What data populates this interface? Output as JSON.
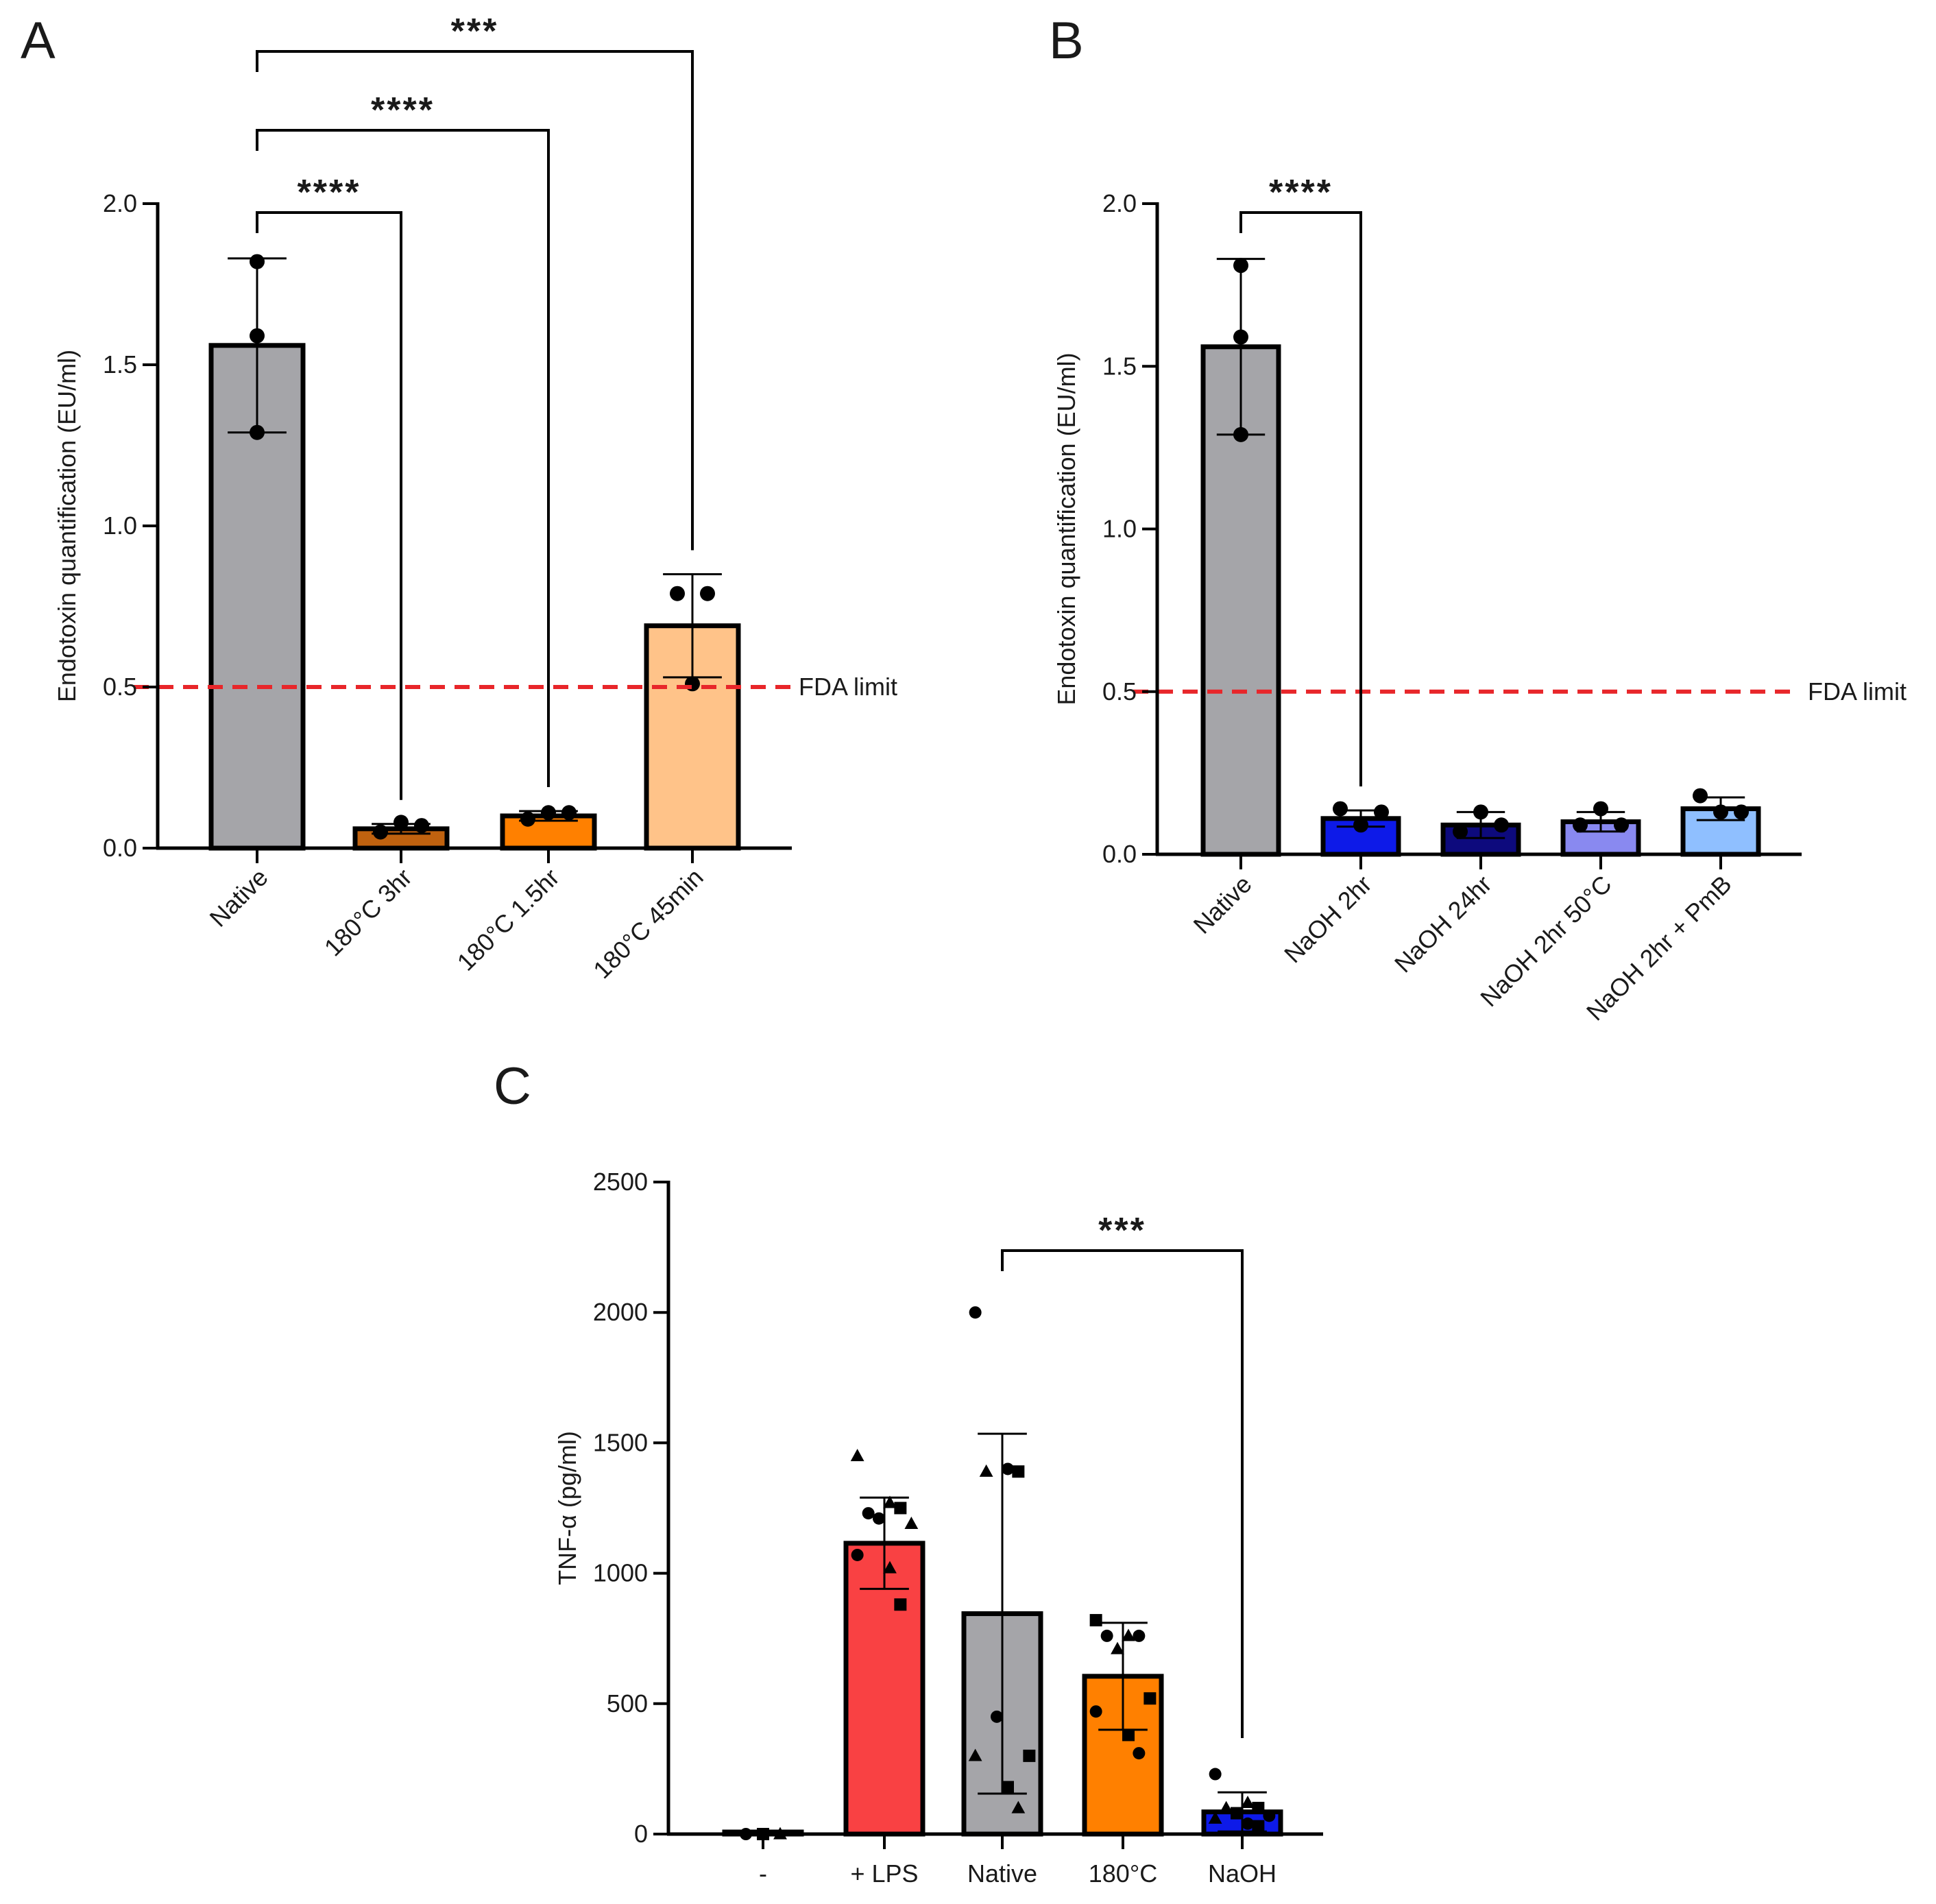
{
  "chart_data": [
    {
      "panel": "A",
      "type": "bar",
      "ylabel": "Endotoxin quantification (EU/ml)",
      "ylim": [
        0,
        2.0
      ],
      "yticks": [
        "0.0",
        "0.5",
        "1.0",
        "1.5",
        "2.0"
      ],
      "ytick_values": [
        0,
        0.5,
        1.0,
        1.5,
        2.0
      ],
      "categories": [
        "Native",
        "180°C 3hr",
        "180°C 1.5hr",
        "180°C 45min"
      ],
      "values": [
        1.56,
        0.06,
        0.1,
        0.69
      ],
      "sd": [
        0.27,
        0.015,
        0.015,
        0.16
      ],
      "colors": [
        "#a5a5a9",
        "#c0620f",
        "#ff8000",
        "#ffc389"
      ],
      "points": [
        [
          1.82,
          1.59,
          1.29
        ],
        [
          0.05,
          0.08,
          0.07
        ],
        [
          0.09,
          0.11,
          0.11
        ],
        [
          0.79,
          0.79,
          0.51
        ]
      ],
      "reference_line": {
        "value": 0.5,
        "label": "FDA limit",
        "color": "#e8262a"
      },
      "significance": [
        {
          "from": 0,
          "to": 1,
          "label": "****"
        },
        {
          "from": 0,
          "to": 2,
          "label": "****"
        },
        {
          "from": 0,
          "to": 3,
          "label": "***"
        }
      ]
    },
    {
      "panel": "B",
      "type": "bar",
      "ylabel": "Endotoxin quantification (EU/ml)",
      "ylim": [
        0,
        2.0
      ],
      "yticks": [
        "0.0",
        "0.5",
        "1.0",
        "1.5",
        "2.0"
      ],
      "ytick_values": [
        0,
        0.5,
        1.0,
        1.5,
        2.0
      ],
      "categories": [
        "Native",
        "NaOH 2hr",
        "NaOH 24hr",
        "NaOH 2hr 50°C",
        "NaOH 2hr + PmB"
      ],
      "values": [
        1.56,
        0.11,
        0.09,
        0.1,
        0.14
      ],
      "sd": [
        0.27,
        0.025,
        0.04,
        0.03,
        0.035
      ],
      "colors": [
        "#a5a5a9",
        "#0d1ae8",
        "#0d0a7d",
        "#8989f0",
        "#8fbfff"
      ],
      "points": [
        [
          1.81,
          1.59,
          1.29
        ],
        [
          0.14,
          0.09,
          0.13
        ],
        [
          0.07,
          0.13,
          0.09
        ],
        [
          0.09,
          0.14,
          0.09
        ],
        [
          0.18,
          0.13,
          0.13
        ]
      ],
      "reference_line": {
        "value": 0.5,
        "label": "FDA limit",
        "color": "#e8262a"
      },
      "significance": [
        {
          "from": 0,
          "to": 1,
          "label": "****"
        }
      ]
    },
    {
      "panel": "C",
      "type": "bar",
      "ylabel": "TNF-α (pg/ml)",
      "ylim": [
        0,
        2500
      ],
      "yticks": [
        "0",
        "500",
        "1000",
        "1500",
        "2000",
        "2500"
      ],
      "ytick_values": [
        0,
        500,
        1000,
        1500,
        2000,
        2500
      ],
      "categories": [
        "-",
        "+ LPS",
        "Native",
        "180°C",
        "NaOH"
      ],
      "values": [
        0,
        1115,
        845,
        605,
        85
      ],
      "sd": [
        5,
        175,
        690,
        205,
        75
      ],
      "colors": [
        "#a5a5a9",
        "#f94143",
        "#a5a5a9",
        "#ff8000",
        "#0d1ae8"
      ],
      "points": [
        [
          {
            "y": 0,
            "m": "circle"
          },
          {
            "y": 0,
            "m": "square"
          },
          {
            "y": 0,
            "m": "triangle"
          }
        ],
        [
          {
            "y": 1450,
            "m": "triangle"
          },
          {
            "y": 1270,
            "m": "triangle"
          },
          {
            "y": 1250,
            "m": "square"
          },
          {
            "y": 1230,
            "m": "circle"
          },
          {
            "y": 1210,
            "m": "circle"
          },
          {
            "y": 1190,
            "m": "triangle"
          },
          {
            "y": 1070,
            "m": "circle"
          },
          {
            "y": 1020,
            "m": "triangle"
          },
          {
            "y": 880,
            "m": "square"
          }
        ],
        [
          {
            "y": 2000,
            "m": "circle"
          },
          {
            "y": 1400,
            "m": "circle"
          },
          {
            "y": 1390,
            "m": "square"
          },
          {
            "y": 1390,
            "m": "triangle"
          },
          {
            "y": 450,
            "m": "circle"
          },
          {
            "y": 300,
            "m": "square"
          },
          {
            "y": 300,
            "m": "triangle"
          },
          {
            "y": 180,
            "m": "square"
          },
          {
            "y": 100,
            "m": "triangle"
          }
        ],
        [
          {
            "y": 820,
            "m": "square"
          },
          {
            "y": 760,
            "m": "triangle"
          },
          {
            "y": 760,
            "m": "circle"
          },
          {
            "y": 760,
            "m": "circle"
          },
          {
            "y": 710,
            "m": "triangle"
          },
          {
            "y": 520,
            "m": "square"
          },
          {
            "y": 470,
            "m": "circle"
          },
          {
            "y": 380,
            "m": "square"
          },
          {
            "y": 310,
            "m": "circle"
          }
        ],
        [
          {
            "y": 230,
            "m": "circle"
          },
          {
            "y": 120,
            "m": "triangle"
          },
          {
            "y": 100,
            "m": "square"
          },
          {
            "y": 100,
            "m": "triangle"
          },
          {
            "y": 80,
            "m": "square"
          },
          {
            "y": 70,
            "m": "circle"
          },
          {
            "y": 60,
            "m": "triangle"
          },
          {
            "y": 40,
            "m": "circle"
          },
          {
            "y": 30,
            "m": "square"
          }
        ]
      ],
      "significance": [
        {
          "from": 2,
          "to": 4,
          "label": "***"
        }
      ]
    }
  ]
}
